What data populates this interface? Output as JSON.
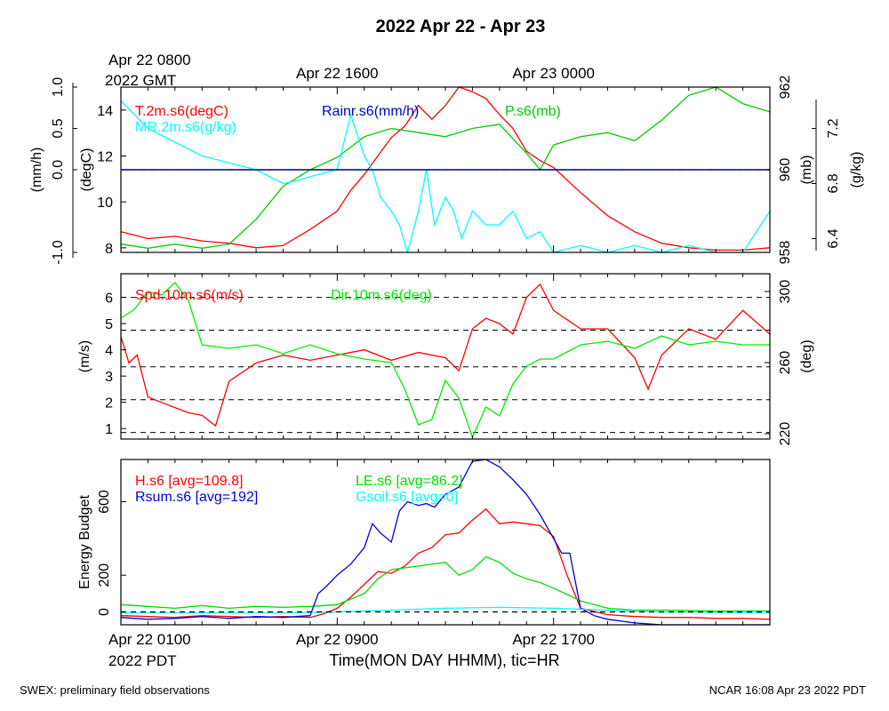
{
  "page": {
    "title": "2022 Apr 22 - Apr 23",
    "footer_left": "SWEX: preliminary field observations",
    "footer_right": "NCAR 16:08 Apr 23 2022 PDT",
    "top_axis_first_line1": "Apr 22 0800",
    "top_axis_first_line2": "2022 GMT",
    "top_axis_ticks": [
      "Apr 22 1600",
      "Apr 23 0000"
    ],
    "bottom_axis_first_line1": "Apr 22 0100",
    "bottom_axis_first_line2": "2022 PDT",
    "bottom_axis_ticks": [
      "Apr 22 0900",
      "Apr 22 1700"
    ],
    "xlabel": "Time(MON DAY HHMM), tic=HR"
  },
  "chart_data": [
    {
      "type": "line",
      "panel": "top",
      "x_hours_pdt": [
        0,
        24
      ],
      "axes": {
        "left_outer": {
          "label": "(mm/h)",
          "ticks": [
            "-1.0",
            "0.0",
            "0.5",
            "1.0"
          ],
          "ylim": [
            -1.0,
            1.0
          ]
        },
        "left_inner": {
          "label": "(degC)",
          "ticks": [
            "8",
            "10",
            "12",
            "14"
          ],
          "ylim": [
            7.8,
            15.0
          ]
        },
        "right_inner": {
          "label": "(mb)",
          "ticks": [
            "958",
            "960",
            "962"
          ],
          "ylim": [
            958,
            962
          ]
        },
        "right_outer": {
          "label": "(g/kg)",
          "ticks": [
            "6.4",
            "6.8",
            "7.2"
          ],
          "ylim": [
            6.3,
            7.5
          ]
        }
      },
      "zero_line": 0.0,
      "series": [
        {
          "name": "T.2m.s6(degC)",
          "color": "#ff0000",
          "axis": "left_inner",
          "x": [
            0,
            1,
            2,
            3,
            4,
            5,
            6,
            7,
            7.5,
            8,
            8.5,
            9,
            9.5,
            10,
            10.5,
            11,
            11.5,
            12,
            12.5,
            13,
            13.5,
            14,
            14.5,
            15,
            15.5,
            16,
            17,
            18,
            19,
            20,
            21,
            22,
            23,
            24
          ],
          "y": [
            8.7,
            8.4,
            8.5,
            8.3,
            8.2,
            8.0,
            8.1,
            8.8,
            9.2,
            9.6,
            10.5,
            11.2,
            12.0,
            12.8,
            13.3,
            14.2,
            13.6,
            14.2,
            15.2,
            14.8,
            14.5,
            13.8,
            13.2,
            12.2,
            11.8,
            11.5,
            10.4,
            9.4,
            8.7,
            8.2,
            8.0,
            7.9,
            7.9,
            8.0
          ]
        },
        {
          "name": "Rainr.s6(mm/h)",
          "color": "#0000cc",
          "axis": "left_outer",
          "x": [
            0,
            24
          ],
          "y": [
            0,
            0
          ]
        },
        {
          "name": "P.s6(mb)",
          "color": "#00cc00",
          "axis": "right_inner",
          "x": [
            0,
            1,
            2,
            3,
            4,
            5,
            6,
            7,
            8,
            9,
            10,
            11,
            12,
            13,
            14,
            15,
            15.5,
            16,
            17,
            18,
            19,
            20,
            21,
            22,
            23,
            24
          ],
          "y": [
            958.2,
            958.1,
            958.2,
            958.1,
            958.2,
            958.8,
            959.6,
            960.0,
            960.3,
            960.8,
            961.0,
            960.9,
            960.8,
            961.0,
            961.1,
            960.4,
            960.0,
            960.6,
            960.8,
            960.9,
            960.7,
            961.2,
            961.8,
            962.1,
            961.6,
            961.4
          ]
        },
        {
          "name": "MR.2m.s6(g/kg)",
          "color": "#00ffff",
          "axis": "right_outer",
          "x": [
            0,
            0.5,
            1,
            2,
            3,
            4,
            5,
            6,
            6.5,
            7,
            8,
            8.5,
            9,
            9.3,
            9.6,
            10,
            10.3,
            10.6,
            11,
            11.3,
            11.6,
            12,
            12.3,
            12.6,
            13,
            13.5,
            14,
            14.5,
            15,
            15.5,
            16,
            17,
            18,
            19,
            20,
            21,
            22,
            23,
            24
          ],
          "y": [
            7.4,
            7.3,
            7.2,
            7.1,
            7.0,
            6.95,
            6.9,
            6.8,
            6.82,
            6.85,
            6.9,
            7.3,
            7.0,
            6.9,
            6.7,
            6.6,
            6.5,
            6.3,
            6.6,
            6.9,
            6.5,
            6.7,
            6.6,
            6.4,
            6.6,
            6.5,
            6.5,
            6.6,
            6.4,
            6.45,
            6.3,
            6.35,
            6.3,
            6.35,
            6.3,
            6.35,
            6.3,
            6.3,
            6.6
          ]
        }
      ]
    },
    {
      "type": "line",
      "panel": "middle",
      "x_hours_pdt": [
        0,
        24
      ],
      "axes": {
        "left": {
          "label": "(m/s)",
          "ticks": [
            "1",
            "2",
            "3",
            "4",
            "5",
            "6"
          ],
          "ylim": [
            0.6,
            6.9
          ]
        },
        "right": {
          "label": "(deg)",
          "ticks": [
            "220",
            "260",
            "300"
          ],
          "ylim": [
            217,
            310
          ]
        }
      },
      "gridlines_left_values": [
        0.85,
        2.1,
        3.35,
        4.75,
        6.0
      ],
      "series": [
        {
          "name": "Spd.10m.s6(m/s)",
          "color": "#ff0000",
          "axis": "left",
          "x": [
            0,
            0.3,
            0.6,
            1,
            1.5,
            2,
            2.5,
            3,
            3.5,
            4,
            5,
            6,
            7,
            8,
            9,
            10,
            11,
            12,
            12.5,
            13,
            13.5,
            14,
            14.5,
            15,
            15.5,
            16,
            17,
            18,
            19,
            19.5,
            20,
            21,
            22,
            23,
            24
          ],
          "y": [
            4.5,
            3.5,
            3.8,
            2.2,
            2.0,
            1.8,
            1.6,
            1.5,
            1.1,
            2.8,
            3.5,
            3.8,
            3.6,
            3.8,
            4.0,
            3.6,
            3.9,
            3.7,
            3.2,
            4.8,
            5.2,
            5.0,
            4.6,
            6.0,
            6.5,
            5.5,
            4.8,
            4.8,
            3.7,
            2.5,
            3.8,
            4.8,
            4.4,
            5.5,
            4.6
          ]
        },
        {
          "name": "Dir.10m.s6(deg)",
          "color": "#00ee00",
          "axis": "right",
          "x": [
            0,
            0.5,
            1,
            1.5,
            2,
            2.5,
            3,
            4,
            5,
            6,
            7,
            8,
            9,
            10,
            10.5,
            11,
            11.5,
            12,
            12.5,
            13,
            13.5,
            14,
            14.5,
            15,
            15.5,
            16,
            17,
            18,
            19,
            20,
            21,
            22,
            23,
            24
          ],
          "y": [
            285,
            290,
            300,
            298,
            305,
            295,
            270,
            268,
            270,
            265,
            270,
            265,
            262,
            260,
            245,
            225,
            228,
            250,
            240,
            218,
            235,
            230,
            248,
            258,
            262,
            262,
            270,
            272,
            268,
            275,
            270,
            272,
            270,
            270
          ]
        }
      ]
    },
    {
      "type": "line",
      "panel": "bottom",
      "x_hours_pdt": [
        0,
        24
      ],
      "axes": {
        "left": {
          "label": "Energy Budget",
          "ticks": [
            "0",
            "200",
            "600"
          ],
          "ylim": [
            -70,
            830
          ]
        }
      },
      "zero_line": 0,
      "series": [
        {
          "name": "H.s6 [avg=109.8]",
          "color": "#ff0000",
          "x": [
            0,
            1,
            2,
            3,
            4,
            5,
            6,
            7,
            7.5,
            8,
            8.5,
            9,
            9.5,
            10,
            10.5,
            11,
            11.5,
            12,
            12.5,
            13,
            13.5,
            14,
            14.5,
            15,
            15.5,
            16,
            16.5,
            17,
            18,
            19,
            20,
            21,
            22,
            23,
            24
          ],
          "y": [
            -20,
            -25,
            -30,
            -20,
            -25,
            -30,
            -25,
            -30,
            -10,
            20,
            80,
            150,
            220,
            210,
            250,
            320,
            350,
            420,
            430,
            500,
            560,
            480,
            490,
            480,
            470,
            410,
            200,
            20,
            -15,
            -25,
            -30,
            -30,
            -35,
            -35,
            -40
          ]
        },
        {
          "name": "LE.s6 [avg=86.2]",
          "color": "#00dd00",
          "x": [
            0,
            1,
            2,
            3,
            4,
            5,
            6,
            7,
            8,
            9,
            9.5,
            10,
            11,
            12,
            12.5,
            13,
            13.5,
            14,
            14.5,
            15,
            15.5,
            16,
            17,
            18,
            19,
            20,
            22,
            24
          ],
          "y": [
            40,
            30,
            20,
            35,
            20,
            30,
            25,
            30,
            40,
            100,
            180,
            230,
            250,
            270,
            200,
            230,
            300,
            270,
            210,
            180,
            160,
            130,
            60,
            20,
            10,
            10,
            5,
            5
          ]
        },
        {
          "name": "Rsum.s6 [avg=192]",
          "color": "#0000dd",
          "x": [
            0,
            1,
            2,
            3,
            4,
            5,
            6,
            7,
            7.3,
            7.6,
            8,
            8.5,
            9,
            9.3,
            9.6,
            10,
            10.3,
            10.6,
            11,
            11.3,
            11.6,
            12,
            12.5,
            13,
            13.5,
            14,
            14.5,
            15,
            15.5,
            16,
            16.3,
            16.6,
            17,
            17.5,
            18,
            19,
            20,
            22,
            24
          ],
          "y": [
            -30,
            -40,
            -35,
            -25,
            -35,
            -25,
            -30,
            -20,
            100,
            140,
            200,
            260,
            350,
            480,
            430,
            380,
            550,
            600,
            580,
            590,
            570,
            640,
            680,
            820,
            830,
            790,
            720,
            640,
            530,
            400,
            320,
            320,
            20,
            -20,
            -40,
            -60,
            -70,
            -70,
            -70
          ]
        },
        {
          "name": "Gsoil.s6 [avg=0]",
          "color": "#00ffff",
          "x": [
            0,
            6,
            8,
            10,
            12,
            14,
            16,
            18,
            20,
            24
          ],
          "y": [
            -5,
            -5,
            0,
            10,
            20,
            25,
            20,
            10,
            0,
            -5
          ]
        }
      ]
    }
  ]
}
